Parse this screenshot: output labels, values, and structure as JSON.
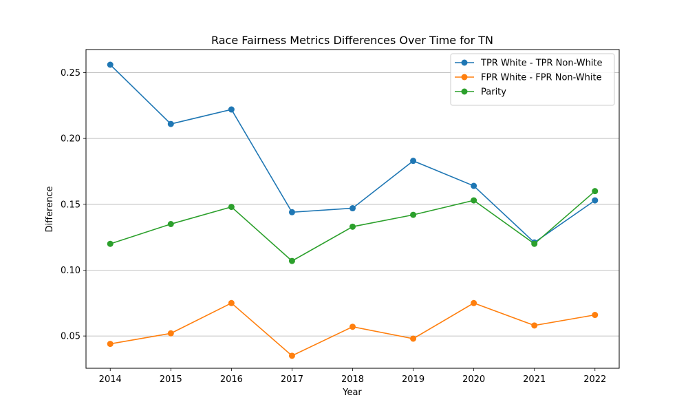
{
  "chart_data": {
    "type": "line",
    "title": "Race Fairness Metrics Differences Over Time for TN",
    "xlabel": "Year",
    "ylabel": "Difference",
    "x": [
      2014,
      2015,
      2016,
      2017,
      2018,
      2019,
      2020,
      2021,
      2022
    ],
    "xlim": [
      2013.6,
      2022.4
    ],
    "ylim": [
      0.0255,
      0.2675
    ],
    "yticks": [
      0.05,
      0.1,
      0.15,
      0.2,
      0.25
    ],
    "ytick_labels": [
      "0.05",
      "0.10",
      "0.15",
      "0.20",
      "0.25"
    ],
    "grid": "horizontal",
    "legend_position": "top-right",
    "series": [
      {
        "name": "TPR White - TPR Non-White",
        "color": "#1f77b4",
        "values": [
          0.256,
          0.211,
          0.222,
          0.144,
          0.147,
          0.183,
          0.164,
          0.121,
          0.153
        ]
      },
      {
        "name": "FPR White - FPR Non-White",
        "color": "#ff7f0e",
        "values": [
          0.044,
          0.052,
          0.075,
          0.035,
          0.057,
          0.048,
          0.075,
          0.058,
          0.066
        ]
      },
      {
        "name": "Parity",
        "color": "#2ca02c",
        "values": [
          0.12,
          0.135,
          0.148,
          0.107,
          0.133,
          0.142,
          0.153,
          0.12,
          0.16
        ]
      }
    ]
  }
}
